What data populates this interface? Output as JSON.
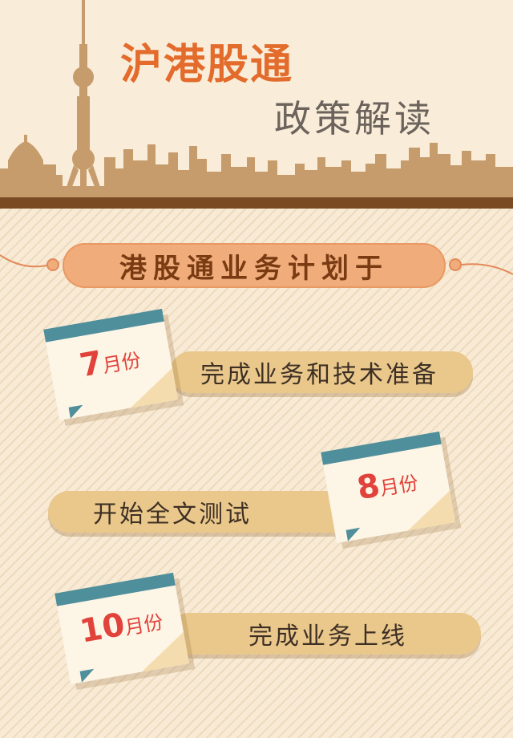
{
  "header": {
    "title": "沪港股通",
    "subtitle": "政策解读"
  },
  "section": {
    "heading": "港股通业务计划于"
  },
  "timeline": [
    {
      "month_num": "7",
      "month_unit": "月份",
      "task": "完成业务和技术准备"
    },
    {
      "month_num": "8",
      "month_unit": "月份",
      "task": "开始全文测试"
    },
    {
      "month_num": "10",
      "month_unit": "月份",
      "task": "完成业务上线"
    }
  ],
  "colors": {
    "title_orange": "#e36b2c",
    "skyline": "#c69c6d",
    "pill": "#f0ad7b",
    "bar": "#eac88c",
    "calendar_band": "#4f8e9b",
    "month_red": "#e1423b"
  },
  "icons": [
    "oriental-pearl-tower-icon",
    "city-skyline-icon",
    "calendar-icon"
  ]
}
